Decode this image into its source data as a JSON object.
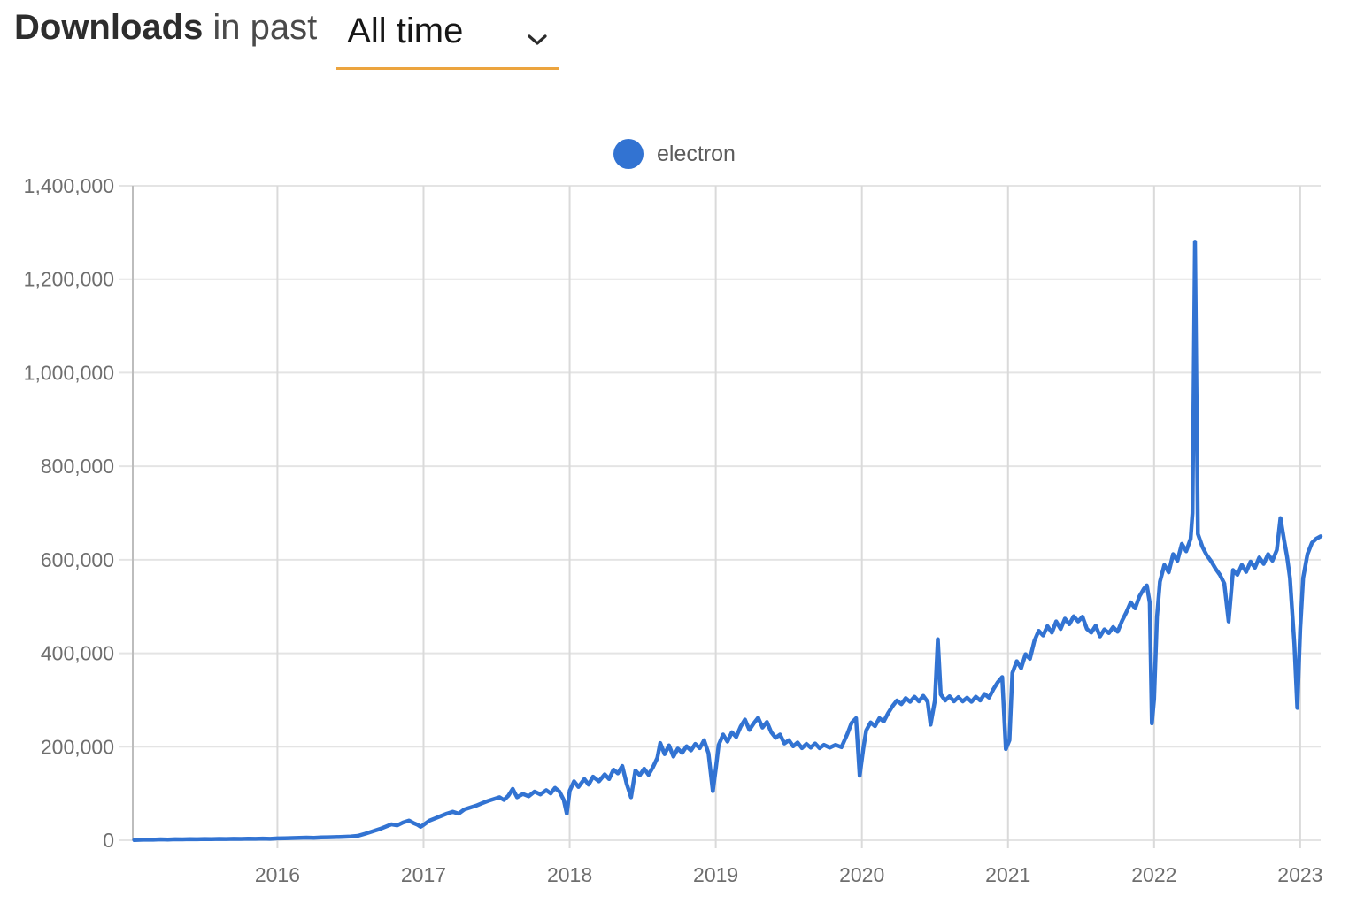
{
  "header": {
    "title_bold": "Downloads",
    "title_mid": "in past",
    "range_selected": "All time",
    "chevron_icon": "chevron-down"
  },
  "legend": {
    "series_label": "electron",
    "dot_color": "#3273D2"
  },
  "colors": {
    "line": "#3273D2",
    "accent_underline": "#ECA43E",
    "grid_h": "#e4e4e4",
    "grid_v": "#dadada",
    "axis": "#bdbdbd",
    "tick": "#c6c6c6",
    "label": "#6e6e6e"
  },
  "chart_data": {
    "type": "line",
    "title": "Downloads in past All time",
    "xlabel": "",
    "ylabel": "",
    "grid": true,
    "legend_position": "top-center",
    "xlim": [
      2015.01,
      2023.14
    ],
    "ylim": [
      0,
      1400000
    ],
    "x_ticks": [
      2016,
      2017,
      2018,
      2019,
      2020,
      2021,
      2022,
      2023
    ],
    "x_tick_labels": [
      "2016",
      "2017",
      "2018",
      "2019",
      "2020",
      "2021",
      "2022",
      "2023"
    ],
    "y_ticks": [
      0,
      200000,
      400000,
      600000,
      800000,
      1000000,
      1200000,
      1400000
    ],
    "y_tick_labels": [
      "0",
      "200,000",
      "400,000",
      "600,000",
      "800,000",
      "1,000,000",
      "1,200,000",
      "1,400,000"
    ],
    "series": [
      {
        "name": "electron",
        "color": "#3273D2",
        "points": [
          [
            2015.02,
            400
          ],
          [
            2015.06,
            900
          ],
          [
            2015.1,
            1300
          ],
          [
            2015.15,
            1100
          ],
          [
            2015.2,
            1800
          ],
          [
            2015.25,
            1500
          ],
          [
            2015.3,
            2100
          ],
          [
            2015.35,
            1800
          ],
          [
            2015.4,
            2400
          ],
          [
            2015.45,
            2100
          ],
          [
            2015.5,
            2600
          ],
          [
            2015.55,
            2300
          ],
          [
            2015.6,
            2900
          ],
          [
            2015.65,
            2600
          ],
          [
            2015.7,
            3100
          ],
          [
            2015.75,
            2800
          ],
          [
            2015.8,
            3400
          ],
          [
            2015.85,
            3000
          ],
          [
            2015.9,
            3600
          ],
          [
            2015.95,
            3100
          ],
          [
            2016.0,
            4000
          ],
          [
            2016.05,
            4400
          ],
          [
            2016.1,
            4800
          ],
          [
            2016.15,
            5200
          ],
          [
            2016.2,
            5600
          ],
          [
            2016.25,
            5300
          ],
          [
            2016.3,
            6000
          ],
          [
            2016.35,
            6400
          ],
          [
            2016.4,
            6900
          ],
          [
            2016.45,
            7400
          ],
          [
            2016.5,
            8000
          ],
          [
            2016.55,
            9500
          ],
          [
            2016.6,
            14000
          ],
          [
            2016.65,
            19000
          ],
          [
            2016.7,
            24000
          ],
          [
            2016.74,
            29000
          ],
          [
            2016.78,
            34000
          ],
          [
            2016.82,
            32000
          ],
          [
            2016.86,
            38000
          ],
          [
            2016.9,
            42000
          ],
          [
            2016.93,
            37000
          ],
          [
            2016.96,
            33000
          ],
          [
            2016.98,
            29000
          ],
          [
            2017.0,
            33000
          ],
          [
            2017.04,
            42000
          ],
          [
            2017.08,
            47000
          ],
          [
            2017.12,
            52000
          ],
          [
            2017.16,
            57000
          ],
          [
            2017.2,
            61000
          ],
          [
            2017.24,
            57000
          ],
          [
            2017.28,
            66000
          ],
          [
            2017.32,
            70000
          ],
          [
            2017.36,
            74000
          ],
          [
            2017.4,
            79000
          ],
          [
            2017.44,
            84000
          ],
          [
            2017.48,
            88000
          ],
          [
            2017.52,
            92000
          ],
          [
            2017.55,
            86000
          ],
          [
            2017.58,
            95000
          ],
          [
            2017.61,
            110000
          ],
          [
            2017.64,
            92000
          ],
          [
            2017.68,
            99000
          ],
          [
            2017.72,
            94000
          ],
          [
            2017.76,
            104000
          ],
          [
            2017.8,
            98000
          ],
          [
            2017.84,
            107000
          ],
          [
            2017.87,
            100000
          ],
          [
            2017.9,
            112000
          ],
          [
            2017.93,
            104000
          ],
          [
            2017.96,
            86000
          ],
          [
            2017.98,
            57000
          ],
          [
            2018.0,
            106000
          ],
          [
            2018.03,
            126000
          ],
          [
            2018.06,
            114000
          ],
          [
            2018.1,
            131000
          ],
          [
            2018.13,
            119000
          ],
          [
            2018.16,
            136000
          ],
          [
            2018.2,
            126000
          ],
          [
            2018.24,
            141000
          ],
          [
            2018.27,
            131000
          ],
          [
            2018.3,
            151000
          ],
          [
            2018.33,
            143000
          ],
          [
            2018.36,
            159000
          ],
          [
            2018.39,
            121000
          ],
          [
            2018.42,
            92000
          ],
          [
            2018.45,
            149000
          ],
          [
            2018.48,
            139000
          ],
          [
            2018.51,
            153000
          ],
          [
            2018.54,
            140000
          ],
          [
            2018.57,
            156000
          ],
          [
            2018.6,
            176000
          ],
          [
            2018.62,
            208000
          ],
          [
            2018.65,
            184000
          ],
          [
            2018.68,
            203000
          ],
          [
            2018.71,
            179000
          ],
          [
            2018.74,
            196000
          ],
          [
            2018.77,
            187000
          ],
          [
            2018.8,
            201000
          ],
          [
            2018.83,
            192000
          ],
          [
            2018.86,
            206000
          ],
          [
            2018.89,
            197000
          ],
          [
            2018.92,
            214000
          ],
          [
            2018.95,
            186000
          ],
          [
            2018.98,
            105000
          ],
          [
            2019.0,
            152000
          ],
          [
            2019.02,
            204000
          ],
          [
            2019.05,
            226000
          ],
          [
            2019.08,
            211000
          ],
          [
            2019.11,
            231000
          ],
          [
            2019.14,
            221000
          ],
          [
            2019.17,
            243000
          ],
          [
            2019.2,
            258000
          ],
          [
            2019.23,
            236000
          ],
          [
            2019.26,
            250000
          ],
          [
            2019.29,
            262000
          ],
          [
            2019.32,
            241000
          ],
          [
            2019.35,
            253000
          ],
          [
            2019.38,
            231000
          ],
          [
            2019.41,
            219000
          ],
          [
            2019.44,
            226000
          ],
          [
            2019.47,
            207000
          ],
          [
            2019.5,
            214000
          ],
          [
            2019.53,
            201000
          ],
          [
            2019.56,
            209000
          ],
          [
            2019.59,
            197000
          ],
          [
            2019.62,
            206000
          ],
          [
            2019.65,
            198000
          ],
          [
            2019.68,
            207000
          ],
          [
            2019.71,
            197000
          ],
          [
            2019.74,
            204000
          ],
          [
            2019.78,
            198000
          ],
          [
            2019.82,
            204000
          ],
          [
            2019.86,
            199000
          ],
          [
            2019.9,
            227000
          ],
          [
            2019.93,
            251000
          ],
          [
            2019.96,
            261000
          ],
          [
            2019.985,
            138000
          ],
          [
            2020.01,
            196000
          ],
          [
            2020.03,
            235000
          ],
          [
            2020.06,
            252000
          ],
          [
            2020.09,
            244000
          ],
          [
            2020.12,
            261000
          ],
          [
            2020.15,
            254000
          ],
          [
            2020.18,
            272000
          ],
          [
            2020.21,
            287000
          ],
          [
            2020.24,
            299000
          ],
          [
            2020.27,
            291000
          ],
          [
            2020.3,
            304000
          ],
          [
            2020.33,
            296000
          ],
          [
            2020.36,
            307000
          ],
          [
            2020.39,
            297000
          ],
          [
            2020.42,
            309000
          ],
          [
            2020.45,
            296000
          ],
          [
            2020.47,
            247000
          ],
          [
            2020.5,
            299000
          ],
          [
            2020.52,
            430000
          ],
          [
            2020.54,
            312000
          ],
          [
            2020.57,
            299000
          ],
          [
            2020.6,
            308000
          ],
          [
            2020.63,
            297000
          ],
          [
            2020.66,
            306000
          ],
          [
            2020.69,
            297000
          ],
          [
            2020.72,
            305000
          ],
          [
            2020.75,
            296000
          ],
          [
            2020.78,
            307000
          ],
          [
            2020.81,
            299000
          ],
          [
            2020.84,
            313000
          ],
          [
            2020.87,
            305000
          ],
          [
            2020.9,
            323000
          ],
          [
            2020.93,
            338000
          ],
          [
            2020.96,
            349000
          ],
          [
            2020.985,
            195000
          ],
          [
            2021.01,
            214000
          ],
          [
            2021.03,
            358000
          ],
          [
            2021.06,
            383000
          ],
          [
            2021.09,
            368000
          ],
          [
            2021.12,
            398000
          ],
          [
            2021.15,
            388000
          ],
          [
            2021.18,
            426000
          ],
          [
            2021.21,
            448000
          ],
          [
            2021.24,
            438000
          ],
          [
            2021.27,
            458000
          ],
          [
            2021.3,
            444000
          ],
          [
            2021.33,
            468000
          ],
          [
            2021.36,
            452000
          ],
          [
            2021.39,
            474000
          ],
          [
            2021.42,
            462000
          ],
          [
            2021.45,
            479000
          ],
          [
            2021.48,
            468000
          ],
          [
            2021.51,
            478000
          ],
          [
            2021.54,
            452000
          ],
          [
            2021.57,
            444000
          ],
          [
            2021.6,
            459000
          ],
          [
            2021.63,
            436000
          ],
          [
            2021.66,
            451000
          ],
          [
            2021.69,
            443000
          ],
          [
            2021.72,
            456000
          ],
          [
            2021.75,
            446000
          ],
          [
            2021.78,
            469000
          ],
          [
            2021.81,
            488000
          ],
          [
            2021.84,
            509000
          ],
          [
            2021.87,
            496000
          ],
          [
            2021.9,
            522000
          ],
          [
            2021.93,
            538000
          ],
          [
            2021.95,
            545000
          ],
          [
            2021.97,
            508000
          ],
          [
            2021.985,
            250000
          ],
          [
            2022.0,
            302000
          ],
          [
            2022.02,
            478000
          ],
          [
            2022.04,
            553000
          ],
          [
            2022.07,
            589000
          ],
          [
            2022.1,
            573000
          ],
          [
            2022.13,
            612000
          ],
          [
            2022.16,
            598000
          ],
          [
            2022.19,
            634000
          ],
          [
            2022.22,
            618000
          ],
          [
            2022.25,
            645000
          ],
          [
            2022.263,
            700000
          ],
          [
            2022.28,
            1280000
          ],
          [
            2022.3,
            655000
          ],
          [
            2022.33,
            628000
          ],
          [
            2022.36,
            610000
          ],
          [
            2022.39,
            597000
          ],
          [
            2022.42,
            581000
          ],
          [
            2022.45,
            568000
          ],
          [
            2022.48,
            549000
          ],
          [
            2022.51,
            468000
          ],
          [
            2022.54,
            578000
          ],
          [
            2022.57,
            568000
          ],
          [
            2022.6,
            589000
          ],
          [
            2022.63,
            574000
          ],
          [
            2022.66,
            596000
          ],
          [
            2022.69,
            583000
          ],
          [
            2022.72,
            605000
          ],
          [
            2022.75,
            591000
          ],
          [
            2022.78,
            612000
          ],
          [
            2022.81,
            598000
          ],
          [
            2022.84,
            621000
          ],
          [
            2022.865,
            689000
          ],
          [
            2022.89,
            642000
          ],
          [
            2022.91,
            607000
          ],
          [
            2022.93,
            561000
          ],
          [
            2022.96,
            419000
          ],
          [
            2022.98,
            283000
          ],
          [
            2023.0,
            452000
          ],
          [
            2023.02,
            561000
          ],
          [
            2023.05,
            612000
          ],
          [
            2023.08,
            636000
          ],
          [
            2023.11,
            645000
          ],
          [
            2023.14,
            650000
          ]
        ]
      }
    ]
  }
}
